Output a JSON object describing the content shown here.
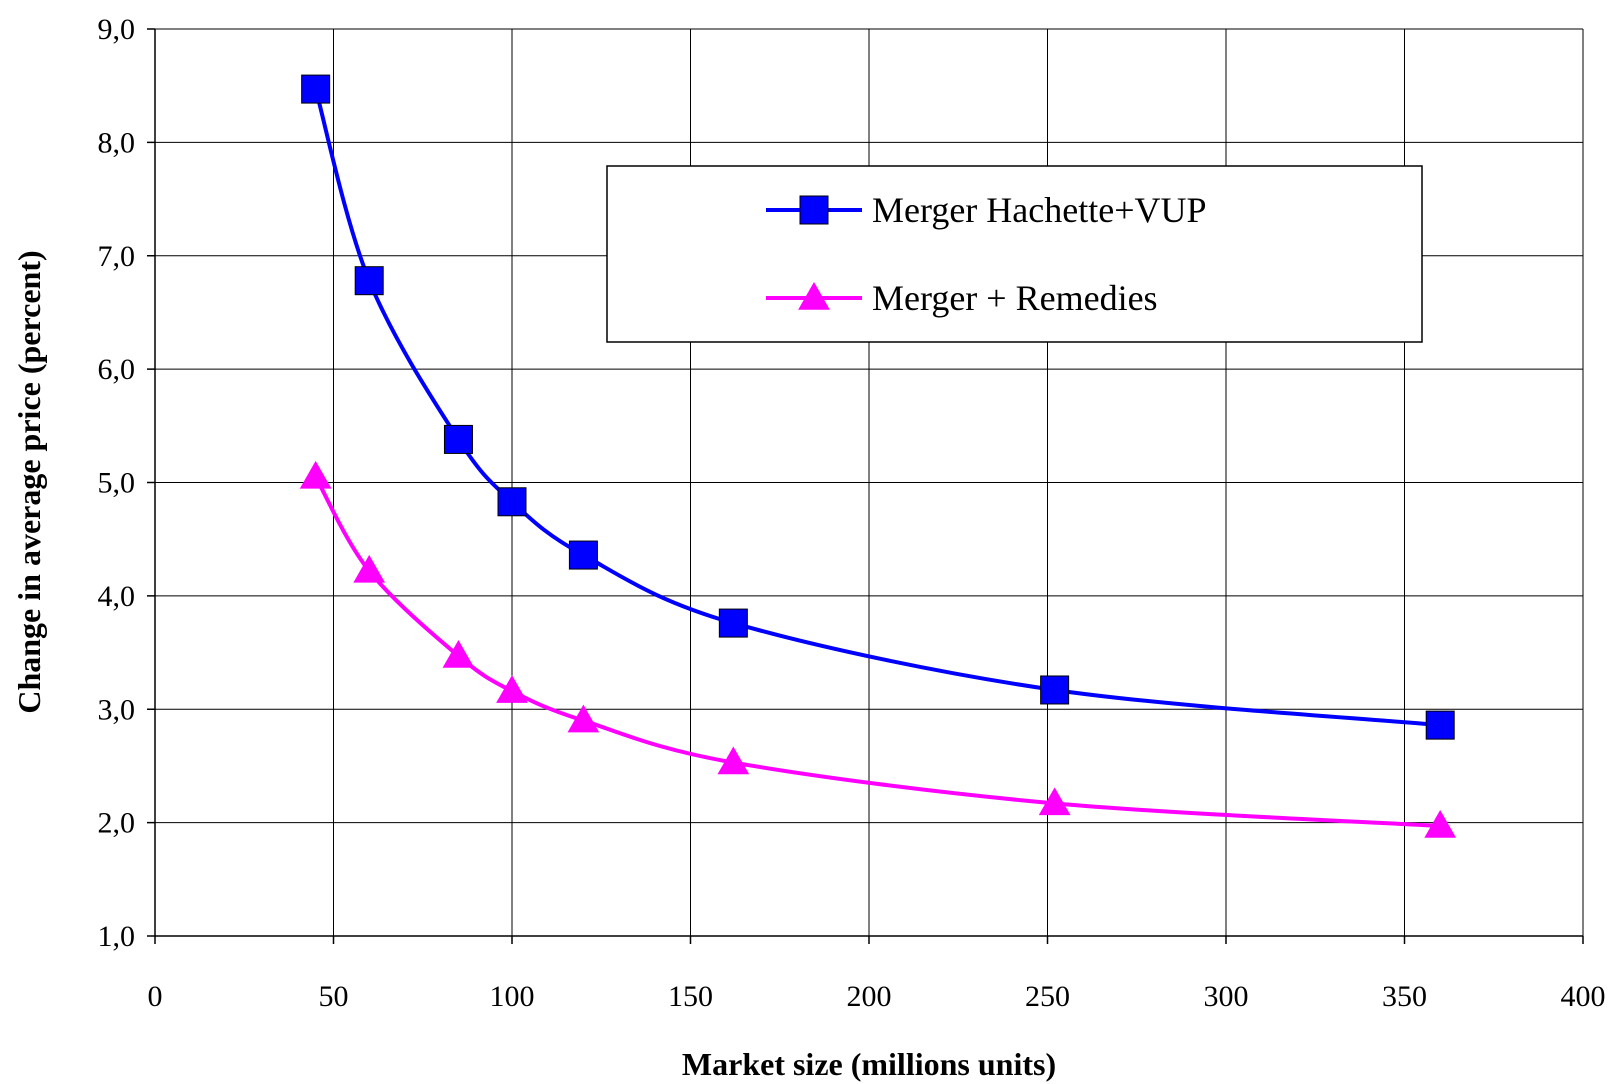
{
  "chart_data": {
    "type": "line",
    "title": "",
    "xlabel": "Market size (millions units)",
    "ylabel": "Change in average price (percent)",
    "xlim": [
      0,
      400
    ],
    "ylim": [
      1.0,
      9.0
    ],
    "xticks": [
      0,
      50,
      100,
      150,
      200,
      250,
      300,
      350,
      400
    ],
    "yticks": [
      1.0,
      2.0,
      3.0,
      4.0,
      5.0,
      6.0,
      7.0,
      8.0,
      9.0
    ],
    "xtick_labels": [
      "0",
      "50",
      "100",
      "150",
      "200",
      "250",
      "300",
      "350",
      "400"
    ],
    "ytick_labels": [
      "1,0",
      "2,0",
      "3,0",
      "4,0",
      "5,0",
      "6,0",
      "7,0",
      "8,0",
      "9,0"
    ],
    "grid": true,
    "legend_position": "upper-right",
    "series": [
      {
        "name": "Merger Hachette+VUP",
        "color": "#0000ff",
        "marker": "square",
        "x": [
          45,
          60,
          85,
          100,
          120,
          162,
          252,
          360
        ],
        "y": [
          8.47,
          6.78,
          5.38,
          4.83,
          4.36,
          3.76,
          3.17,
          2.86
        ]
      },
      {
        "name": "Merger + Remedies",
        "color": "#ff00ff",
        "marker": "triangle",
        "x": [
          45,
          60,
          85,
          100,
          120,
          162,
          252,
          360
        ],
        "y": [
          5.05,
          4.22,
          3.47,
          3.16,
          2.9,
          2.53,
          2.17,
          1.97
        ]
      }
    ]
  }
}
